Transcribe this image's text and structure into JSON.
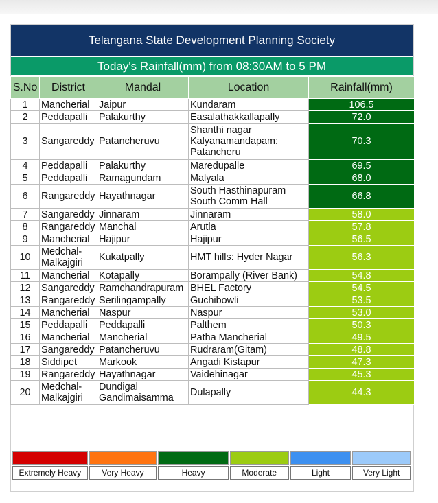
{
  "header": {
    "title": "Telangana State Development Planning Society",
    "subtitle": "Today's Rainfall(mm) from 08:30AM to 5 PM"
  },
  "table": {
    "columns": [
      "S.No",
      "District",
      "Mandal",
      "Location",
      "Rainfall(mm)"
    ],
    "rows": [
      {
        "sno": "1",
        "district": "Mancherial",
        "mandal": "Jaipur",
        "location": "Kundaram",
        "rainfall": "106.5",
        "category": "heavy"
      },
      {
        "sno": "2",
        "district": "Peddapalli",
        "mandal": "Palakurthy",
        "location": "Easalathakkallapally",
        "rainfall": "72.0",
        "category": "heavy"
      },
      {
        "sno": "3",
        "district": "Sangareddy",
        "mandal": "Patancheruvu",
        "location": "Shanthi nagar Kalyanamandapam: Patancheru",
        "rainfall": "70.3",
        "category": "heavy"
      },
      {
        "sno": "4",
        "district": "Peddapalli",
        "mandal": "Palakurthy",
        "location": "Maredupalle",
        "rainfall": "69.5",
        "category": "heavy"
      },
      {
        "sno": "5",
        "district": "Peddapalli",
        "mandal": "Ramagundam",
        "location": "Malyala",
        "rainfall": "68.0",
        "category": "heavy"
      },
      {
        "sno": "6",
        "district": "Rangareddy",
        "mandal": "Hayathnagar",
        "location": "South Hasthinapuram South Comm Hall",
        "rainfall": "66.8",
        "category": "heavy"
      },
      {
        "sno": "7",
        "district": "Sangareddy",
        "mandal": "Jinnaram",
        "location": "Jinnaram",
        "rainfall": "58.0",
        "category": "moderate"
      },
      {
        "sno": "8",
        "district": "Rangareddy",
        "mandal": "Manchal",
        "location": "Arutla",
        "rainfall": "57.8",
        "category": "moderate"
      },
      {
        "sno": "9",
        "district": "Mancherial",
        "mandal": "Hajipur",
        "location": "Hajipur",
        "rainfall": "56.5",
        "category": "moderate"
      },
      {
        "sno": "10",
        "district": "Medchal-Malkajgiri",
        "mandal": "Kukatpally",
        "location": "HMT hills: Hyder Nagar",
        "rainfall": "56.3",
        "category": "moderate"
      },
      {
        "sno": "11",
        "district": "Mancherial",
        "mandal": "Kotapally",
        "location": "Borampally (River Bank)",
        "rainfall": "54.8",
        "category": "moderate"
      },
      {
        "sno": "12",
        "district": "Sangareddy",
        "mandal": "Ramchandrapuram",
        "location": "BHEL Factory",
        "rainfall": "54.5",
        "category": "moderate"
      },
      {
        "sno": "13",
        "district": "Rangareddy",
        "mandal": "Serilingampally",
        "location": "Guchibowli",
        "rainfall": "53.5",
        "category": "moderate"
      },
      {
        "sno": "14",
        "district": "Mancherial",
        "mandal": "Naspur",
        "location": "Naspur",
        "rainfall": "53.0",
        "category": "moderate"
      },
      {
        "sno": "15",
        "district": "Peddapalli",
        "mandal": "Peddapalli",
        "location": "Palthem",
        "rainfall": "50.3",
        "category": "moderate"
      },
      {
        "sno": "16",
        "district": "Mancherial",
        "mandal": "Mancherial",
        "location": "Patha Mancherial",
        "rainfall": "49.5",
        "category": "moderate"
      },
      {
        "sno": "17",
        "district": "Sangareddy",
        "mandal": "Patancheruvu",
        "location": "Rudraram(Gitam)",
        "rainfall": "48.8",
        "category": "moderate"
      },
      {
        "sno": "18",
        "district": "Siddipet",
        "mandal": "Markook",
        "location": "Angadi Kistapur",
        "rainfall": "47.3",
        "category": "moderate"
      },
      {
        "sno": "19",
        "district": "Rangareddy",
        "mandal": "Hayathnagar",
        "location": "Vaidehinagar",
        "rainfall": "45.3",
        "category": "moderate"
      },
      {
        "sno": "20",
        "district": "Medchal-Malkajgiri",
        "mandal": "Dundigal Gandimaisamma",
        "location": "Dulapally",
        "rainfall": "44.3",
        "category": "moderate"
      }
    ]
  },
  "legend": [
    {
      "key": "extremely-heavy",
      "label": "Extremely Heavy",
      "color": "#d40000"
    },
    {
      "key": "very-heavy",
      "label": "Very Heavy",
      "color": "#ff7411"
    },
    {
      "key": "heavy",
      "label": "Heavy",
      "color": "#006a13"
    },
    {
      "key": "moderate",
      "label": "Moderate",
      "color": "#9ccc12"
    },
    {
      "key": "light",
      "label": "Light",
      "color": "#3d90f0"
    },
    {
      "key": "very-light",
      "label": "Very Light",
      "color": "#9ccafa"
    }
  ],
  "colors": {
    "title_bg": "#123466",
    "subtitle_bg": "#0a9a68",
    "header_bg": "#a3d0a0"
  }
}
